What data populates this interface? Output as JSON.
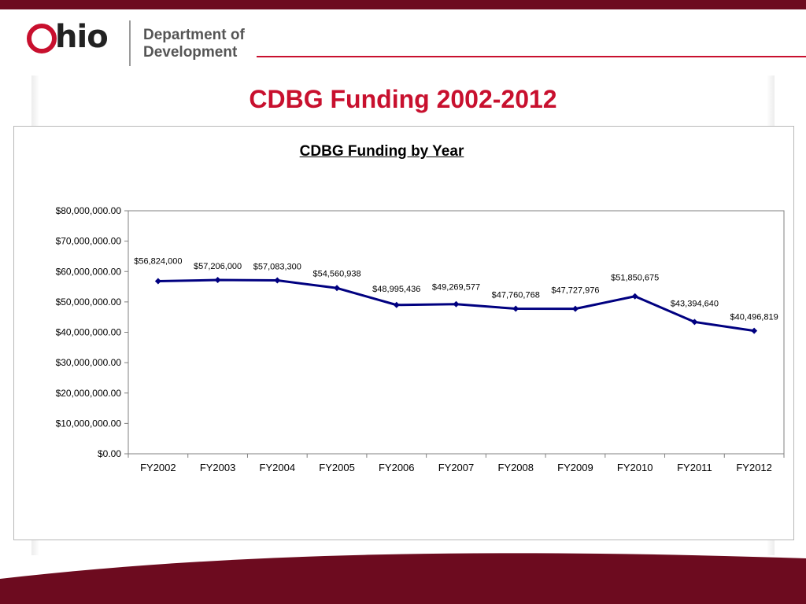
{
  "header": {
    "logo_text": "hio",
    "department_line1": "Department of",
    "department_line2": "Development"
  },
  "slide_title": "CDBG Funding 2002-2012",
  "colors": {
    "brand_red": "#c8102e",
    "band_maroon": "#6d0b1f",
    "series_line": "#000080"
  },
  "chart_data": {
    "type": "line",
    "title": "CDBG Funding by Year",
    "categories": [
      "FY2002",
      "FY2003",
      "FY2004",
      "FY2005",
      "FY2006",
      "FY2007",
      "FY2008",
      "FY2009",
      "FY2010",
      "FY2011",
      "FY2012"
    ],
    "series": [
      {
        "values": [
          56824000,
          57206000,
          57083300,
          54560938,
          48995436,
          49269577,
          47760768,
          47727976,
          51850675,
          43394640,
          40496819
        ],
        "data_labels": [
          "$56,824,000",
          "$57,206,000",
          "$57,083,300",
          "$54,560,938",
          "$48,995,436",
          "$49,269,577",
          "$47,760,768",
          "$47,727,976",
          "$51,850,675",
          "$43,394,640",
          "$40,496,819"
        ]
      }
    ],
    "ylim": [
      0,
      80000000
    ],
    "yticks": [
      0,
      10000000,
      20000000,
      30000000,
      40000000,
      50000000,
      60000000,
      70000000,
      80000000
    ],
    "ytick_labels": [
      "$0.00",
      "$10,000,000.00",
      "$20,000,000.00",
      "$30,000,000.00",
      "$40,000,000.00",
      "$50,000,000.00",
      "$60,000,000.00",
      "$70,000,000.00",
      "$80,000,000.00"
    ],
    "xlabel": "",
    "ylabel": "",
    "grid": false,
    "legend": "none"
  }
}
